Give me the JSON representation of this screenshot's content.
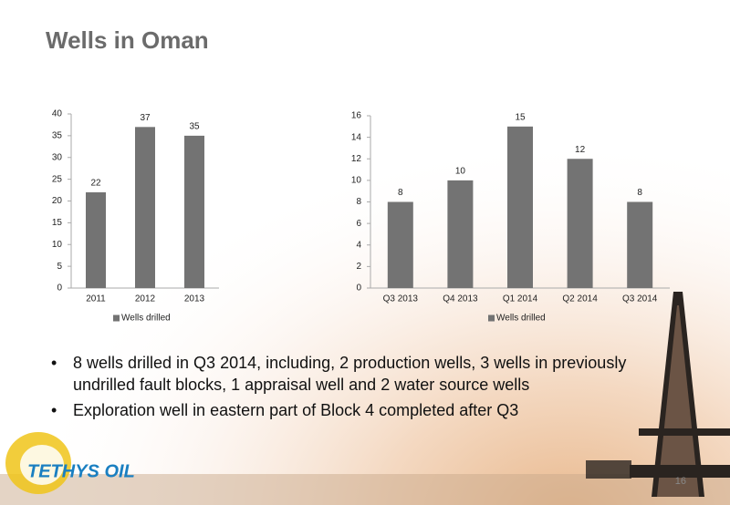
{
  "title": "Wells in Oman",
  "chart_data": [
    {
      "type": "bar",
      "categories": [
        "2011",
        "2012",
        "2013"
      ],
      "series": [
        {
          "name": "Wells drilled",
          "color": "#737373",
          "values": [
            22,
            37,
            35
          ]
        }
      ],
      "ylim": [
        0,
        40
      ],
      "yticks": [
        0,
        5,
        10,
        15,
        20,
        25,
        30,
        35,
        40
      ],
      "grid": false,
      "legend": "bottom"
    },
    {
      "type": "bar",
      "categories": [
        "Q3 2013",
        "Q4 2013",
        "Q1 2014",
        "Q2 2014",
        "Q3 2014"
      ],
      "series": [
        {
          "name": "Wells drilled",
          "color": "#737373",
          "values": [
            8,
            10,
            15,
            12,
            8
          ]
        }
      ],
      "ylim": [
        0,
        16
      ],
      "yticks": [
        0,
        2,
        4,
        6,
        8,
        10,
        12,
        14,
        16
      ],
      "grid": false,
      "legend": "bottom"
    }
  ],
  "bullets": [
    "8 wells drilled in Q3 2014, including, 2 production wells, 3 wells in previously undrilled fault blocks, 1 appraisal well and 2 water source wells",
    "Exploration well in eastern part of Block 4 completed after Q3"
  ],
  "logo": "TETHYS OIL",
  "page_number": "16"
}
